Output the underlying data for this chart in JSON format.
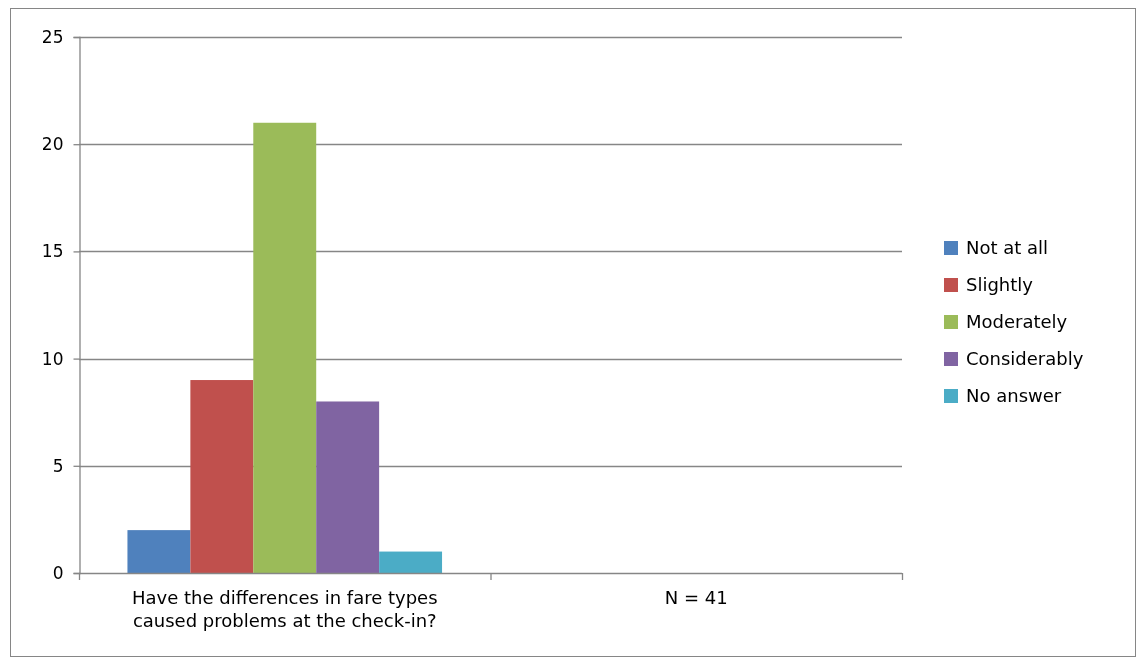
{
  "chart_data": {
    "type": "bar",
    "categories": [
      "Have the differences in fare types caused problems at the check-in?",
      "N = 41"
    ],
    "series": [
      {
        "name": "Not at all",
        "color": "#4f81bd",
        "values": [
          2,
          null
        ]
      },
      {
        "name": "Slightly",
        "color": "#c0504d",
        "values": [
          9,
          null
        ]
      },
      {
        "name": "Moderately",
        "color": "#9bbb59",
        "values": [
          21,
          null
        ]
      },
      {
        "name": "Considerably",
        "color": "#8064a2",
        "values": [
          8,
          null
        ]
      },
      {
        "name": "No answer",
        "color": "#4bacc6",
        "values": [
          1,
          null
        ]
      }
    ],
    "ylim": [
      0,
      25
    ],
    "yticks": [
      0,
      5,
      10,
      15,
      20,
      25
    ],
    "grid": "y",
    "legend": "right"
  }
}
